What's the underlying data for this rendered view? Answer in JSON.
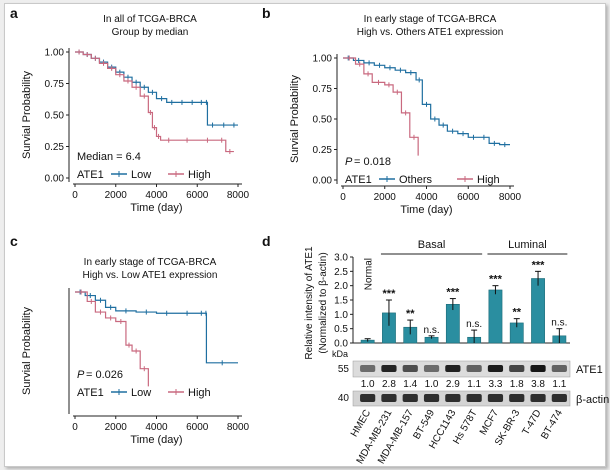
{
  "colors": {
    "low": "#1f6fa0",
    "high": "#c9697f",
    "bar": "#2a8ea0",
    "axis": "#222222"
  },
  "chart_data": [
    {
      "panel": "a",
      "type": "line",
      "title": "In all of TCGA-BRCA",
      "subtitle": "Group by median",
      "xlabel": "Time (day)",
      "ylabel": "Survial Probability",
      "xlim": [
        0,
        8000
      ],
      "ylim": [
        0,
        1
      ],
      "xticks": [
        "0",
        "2000",
        "4000",
        "6000",
        "8000"
      ],
      "yticks": [
        "0.00",
        "0.25",
        "0.50",
        "0.75",
        "1.00"
      ],
      "annotation": "Median = 6.4",
      "legend_title": "ATE1",
      "series": [
        {
          "name": "Low",
          "color": "#1f6fa0",
          "x": [
            0,
            400,
            800,
            1200,
            1600,
            2000,
            2400,
            2800,
            3200,
            3600,
            4000,
            4500,
            5000,
            5500,
            6000,
            6400,
            6500,
            7000,
            7600,
            8000
          ],
          "y": [
            1.0,
            0.98,
            0.95,
            0.92,
            0.88,
            0.84,
            0.8,
            0.76,
            0.72,
            0.68,
            0.63,
            0.6,
            0.6,
            0.6,
            0.6,
            0.6,
            0.42,
            0.42,
            0.42,
            0.42
          ]
        },
        {
          "name": "High",
          "color": "#c9697f",
          "x": [
            0,
            400,
            800,
            1200,
            1600,
            2000,
            2400,
            2800,
            3200,
            3600,
            3800,
            4000,
            4200,
            5000,
            6000,
            7000,
            7400,
            7800
          ],
          "y": [
            1.0,
            0.98,
            0.95,
            0.91,
            0.87,
            0.82,
            0.77,
            0.72,
            0.65,
            0.52,
            0.4,
            0.33,
            0.3,
            0.3,
            0.3,
            0.3,
            0.21,
            0.21
          ]
        }
      ]
    },
    {
      "panel": "b",
      "type": "line",
      "title": "In early stage of TCGA-BRCA",
      "subtitle": "High vs. Others ATE1 expression",
      "xlabel": "Time (day)",
      "ylabel": "Survial Probability",
      "xlim": [
        0,
        8000
      ],
      "ylim": [
        0,
        1
      ],
      "xticks": [
        "0",
        "2000",
        "4000",
        "6000",
        "8000"
      ],
      "yticks": [
        "0.00",
        "0.25",
        "0.50",
        "0.75",
        "1.00"
      ],
      "p_label": "P",
      "p_value": " = 0.018",
      "legend_title": "ATE1",
      "series": [
        {
          "name": "Others",
          "color": "#1f6fa0",
          "x": [
            0,
            500,
            1000,
            1500,
            2000,
            2500,
            3000,
            3500,
            3800,
            4200,
            4600,
            5000,
            5500,
            6000,
            6500,
            7000,
            7500,
            8000
          ],
          "y": [
            1.0,
            0.98,
            0.96,
            0.94,
            0.92,
            0.9,
            0.88,
            0.82,
            0.62,
            0.5,
            0.45,
            0.4,
            0.38,
            0.35,
            0.35,
            0.3,
            0.29,
            0.29
          ]
        },
        {
          "name": "High",
          "color": "#c9697f",
          "x": [
            0,
            600,
            1000,
            1400,
            2000,
            2400,
            2800,
            3200,
            3600
          ],
          "y": [
            1.0,
            0.95,
            0.87,
            0.8,
            0.78,
            0.72,
            0.55,
            0.35,
            0.2
          ]
        }
      ]
    },
    {
      "panel": "c",
      "type": "line",
      "title": "In early stage of TCGA-BRCA",
      "subtitle": "High vs. Low ATE1 expression",
      "xlabel": "Time (day)",
      "ylabel": "Survial Probability",
      "xlim": [
        0,
        8000
      ],
      "ylim": [
        0,
        1
      ],
      "xticks": [
        "0",
        "2000",
        "4000",
        "6000",
        "8000"
      ],
      "p_label": "P",
      "p_value": " = 0.026",
      "legend_title": "ATE1",
      "series": [
        {
          "name": "Low",
          "color": "#1f6fa0",
          "x": [
            0,
            500,
            1000,
            1500,
            2000,
            3000,
            4000,
            5000,
            6000,
            6400,
            6450,
            8000
          ],
          "y": [
            1.0,
            0.97,
            0.93,
            0.87,
            0.84,
            0.83,
            0.82,
            0.82,
            0.82,
            0.82,
            0.4,
            0.4
          ]
        },
        {
          "name": "High",
          "color": "#c9697f",
          "x": [
            0,
            600,
            1000,
            1500,
            2000,
            2500,
            2800,
            3200,
            3600
          ],
          "y": [
            1.0,
            0.92,
            0.83,
            0.78,
            0.75,
            0.55,
            0.5,
            0.35,
            0.2
          ]
        }
      ]
    },
    {
      "panel": "d",
      "type": "bar",
      "ylabel_1": "Relative intensity of ATE1",
      "ylabel_2": "(Normalized to β-actin)",
      "ylim": [
        0,
        3.0
      ],
      "yticks": [
        "0.0",
        "0.5",
        "1.0",
        "1.5",
        "2.0",
        "2.5",
        "3.0"
      ],
      "group_labels": [
        "Normal",
        "Basal",
        "Luminal"
      ],
      "categories": [
        "HMEC",
        "MDA-MB-231",
        "MDA-MB-157",
        "BT-549",
        "HCC1143",
        "Hs 578T",
        "MCF7",
        "SK-BR-3",
        "T-47D",
        "BT-474"
      ],
      "values": [
        0.1,
        1.05,
        0.55,
        0.2,
        1.35,
        0.2,
        1.85,
        0.7,
        2.25,
        0.25
      ],
      "errors": [
        0.05,
        0.45,
        0.25,
        0.05,
        0.2,
        0.25,
        0.15,
        0.15,
        0.25,
        0.25
      ],
      "significance": [
        "",
        "***",
        "**",
        "n.s.",
        "***",
        "n.s.",
        "***",
        "**",
        "***",
        "n.s."
      ],
      "blot": {
        "kda_label": "kDa",
        "marker_top": "55",
        "marker_bottom": "40",
        "band_top": "ATE1",
        "band_bottom": "β-actin",
        "ratios": [
          "1.0",
          "2.8",
          "1.4",
          "1.0",
          "2.9",
          "1.1",
          "3.3",
          "1.8",
          "3.8",
          "1.1"
        ]
      }
    }
  ]
}
